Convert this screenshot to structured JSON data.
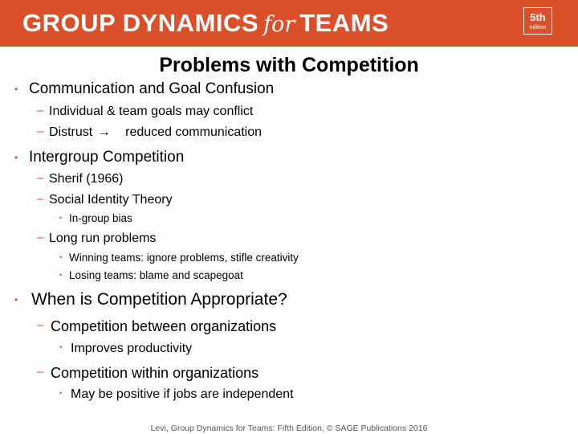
{
  "header": {
    "title_part1": "GROUP DYNAMICS",
    "title_for": "for",
    "title_part2": "TEAMS",
    "edition_num": "5th",
    "edition_word": "edition",
    "accent_color": "#d9502a"
  },
  "slide": {
    "title": "Problems with Competition",
    "items": [
      {
        "level": 1,
        "text": "Communication and Goal Confusion"
      },
      {
        "level": 2,
        "text": "Individual & team goals may conflict"
      },
      {
        "level": 2,
        "text": "Distrust",
        "arrow": "→",
        "text_after": "reduced communication"
      },
      {
        "level": 1,
        "text": "Intergroup Competition"
      },
      {
        "level": 2,
        "text": "Sherif (1966)"
      },
      {
        "level": 2,
        "text": "Social Identity Theory"
      },
      {
        "level": 3,
        "text": "In-group bias"
      },
      {
        "level": 2,
        "text": "Long run problems"
      },
      {
        "level": 3,
        "text": "Winning teams: ignore problems, stifle creativity"
      },
      {
        "level": 3,
        "text": "Losing teams: blame and scapegoat"
      },
      {
        "level": 1,
        "text": "When is Competition Appropriate?"
      },
      {
        "level": 2,
        "text": "Competition between organizations"
      },
      {
        "level": 3,
        "text": "Improves productivity"
      },
      {
        "level": 2,
        "text": "Competition within organizations"
      },
      {
        "level": 3,
        "text": "May be positive if jobs are independent"
      }
    ]
  },
  "footer": {
    "text": "Levi, Group Dynamics for Teams: Fifth Edition, © SAGE Publications 2016"
  }
}
